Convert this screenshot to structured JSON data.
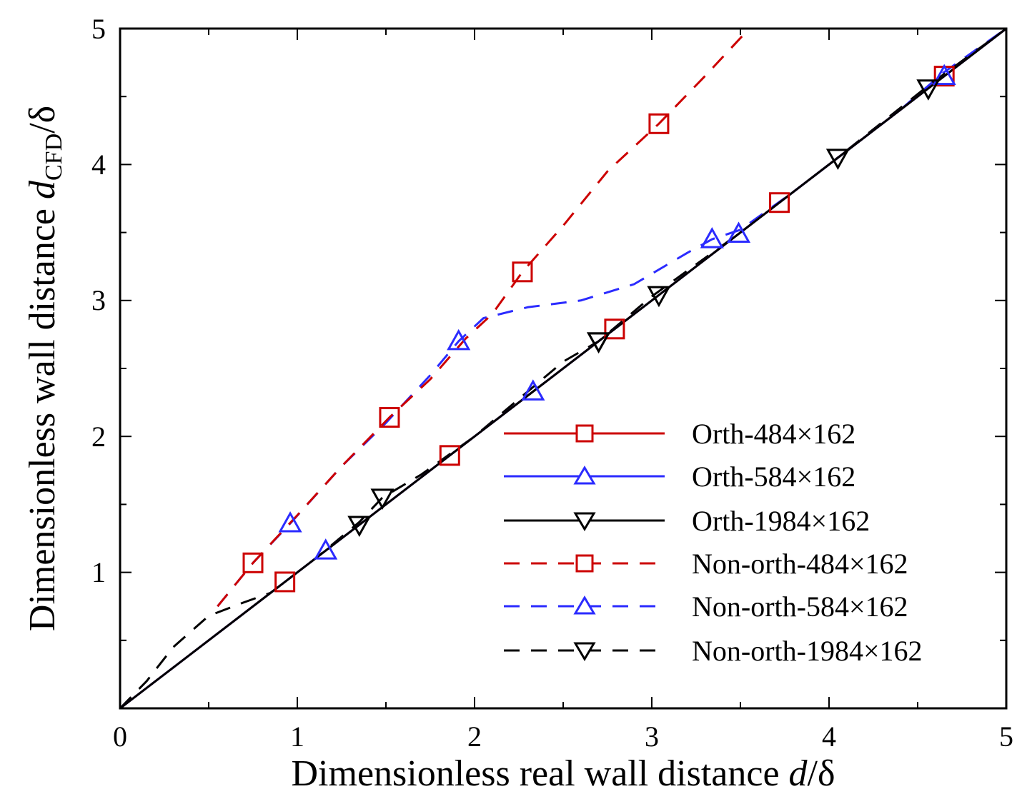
{
  "chart_data": {
    "type": "line",
    "title": "",
    "xlabel": {
      "main": "Dimensionless real wall distance ",
      "italic": "d",
      "tail": "/δ"
    },
    "ylabel": {
      "main": "Dimensionless wall distance ",
      "italic": "d",
      "sub": "CFD",
      "tail": "/δ"
    },
    "xlim": [
      0,
      5
    ],
    "ylim": [
      0,
      5
    ],
    "xticks": [
      0,
      1,
      2,
      3,
      4,
      5
    ],
    "yticks": [
      1,
      2,
      3,
      4,
      5
    ],
    "xtick_labels": [
      "0",
      "1",
      "2",
      "3",
      "4",
      "5"
    ],
    "ytick_labels": [
      "1",
      "2",
      "3",
      "4",
      "5"
    ],
    "grid": false,
    "legend_position": "lower-right",
    "series": [
      {
        "name": "Orth-484×162",
        "color": "#cc0000",
        "dash": "solid",
        "marker": "square",
        "line": [
          [
            0,
            0
          ],
          [
            5,
            5
          ]
        ],
        "markers": [
          [
            0.93,
            0.93
          ],
          [
            1.86,
            1.86
          ],
          [
            2.79,
            2.79
          ],
          [
            3.72,
            3.72
          ],
          [
            4.65,
            4.65
          ]
        ]
      },
      {
        "name": "Orth-584×162",
        "color": "#2b2bff",
        "dash": "solid",
        "marker": "triangle-up",
        "line": [
          [
            0,
            0
          ],
          [
            5,
            5
          ]
        ],
        "markers": [
          [
            1.16,
            1.16
          ],
          [
            2.33,
            2.33
          ],
          [
            3.49,
            3.49
          ],
          [
            4.65,
            4.65
          ]
        ]
      },
      {
        "name": "Orth-1984×162",
        "color": "#000000",
        "dash": "solid",
        "marker": "triangle-down",
        "line": [
          [
            0,
            0
          ],
          [
            5,
            5
          ]
        ],
        "markers": [
          [
            1.35,
            1.35
          ],
          [
            2.7,
            2.7
          ],
          [
            3.04,
            3.04
          ],
          [
            4.05,
            4.05
          ],
          [
            4.56,
            4.56
          ]
        ]
      },
      {
        "name": "Non-orth-484×162",
        "color": "#cc0000",
        "dash": "dashed",
        "marker": "square",
        "line": [
          [
            0.55,
            0.75
          ],
          [
            0.75,
            1.07
          ],
          [
            1.0,
            1.42
          ],
          [
            1.25,
            1.78
          ],
          [
            1.52,
            2.14
          ],
          [
            1.75,
            2.42
          ],
          [
            1.95,
            2.72
          ],
          [
            2.1,
            2.9
          ],
          [
            2.27,
            3.21
          ],
          [
            2.5,
            3.55
          ],
          [
            2.75,
            3.95
          ],
          [
            3.04,
            4.3
          ],
          [
            3.3,
            4.65
          ],
          [
            3.55,
            5.0
          ]
        ],
        "markers": [
          [
            0.75,
            1.07
          ],
          [
            1.52,
            2.14
          ],
          [
            2.27,
            3.21
          ],
          [
            3.04,
            4.3
          ]
        ]
      },
      {
        "name": "Non-orth-584×162",
        "color": "#2b2bff",
        "dash": "dashed",
        "marker": "triangle-up",
        "line": [
          [
            0.55,
            0.75
          ],
          [
            0.75,
            1.07
          ],
          [
            0.96,
            1.36
          ],
          [
            1.25,
            1.78
          ],
          [
            1.5,
            2.1
          ],
          [
            1.75,
            2.45
          ],
          [
            1.91,
            2.7
          ],
          [
            2.05,
            2.87
          ],
          [
            2.3,
            2.95
          ],
          [
            2.6,
            3.0
          ],
          [
            2.9,
            3.12
          ],
          [
            3.2,
            3.35
          ],
          [
            3.34,
            3.45
          ],
          [
            3.5,
            3.52
          ],
          [
            3.8,
            3.8
          ],
          [
            4.1,
            4.1
          ],
          [
            4.4,
            4.4
          ],
          [
            4.65,
            4.68
          ],
          [
            5.0,
            5.0
          ]
        ],
        "markers": [
          [
            0.96,
            1.36
          ],
          [
            1.91,
            2.7
          ],
          [
            3.34,
            3.45
          ]
        ]
      },
      {
        "name": "Non-orth-1984×162",
        "color": "#000000",
        "dash": "dashed",
        "marker": "triangle-down",
        "line": [
          [
            0,
            0
          ],
          [
            0.15,
            0.2
          ],
          [
            0.3,
            0.45
          ],
          [
            0.5,
            0.68
          ],
          [
            0.7,
            0.78
          ],
          [
            0.85,
            0.85
          ],
          [
            1.1,
            1.1
          ],
          [
            1.35,
            1.37
          ],
          [
            1.48,
            1.55
          ],
          [
            1.7,
            1.72
          ],
          [
            2.0,
            2.0
          ],
          [
            2.5,
            2.55
          ],
          [
            2.7,
            2.7
          ],
          [
            3.0,
            3.03
          ],
          [
            3.5,
            3.5
          ],
          [
            4.0,
            4.0
          ],
          [
            4.56,
            4.58
          ],
          [
            5.0,
            5.0
          ]
        ],
        "markers": [
          [
            1.48,
            1.55
          ],
          [
            2.7,
            2.7
          ]
        ]
      }
    ]
  }
}
